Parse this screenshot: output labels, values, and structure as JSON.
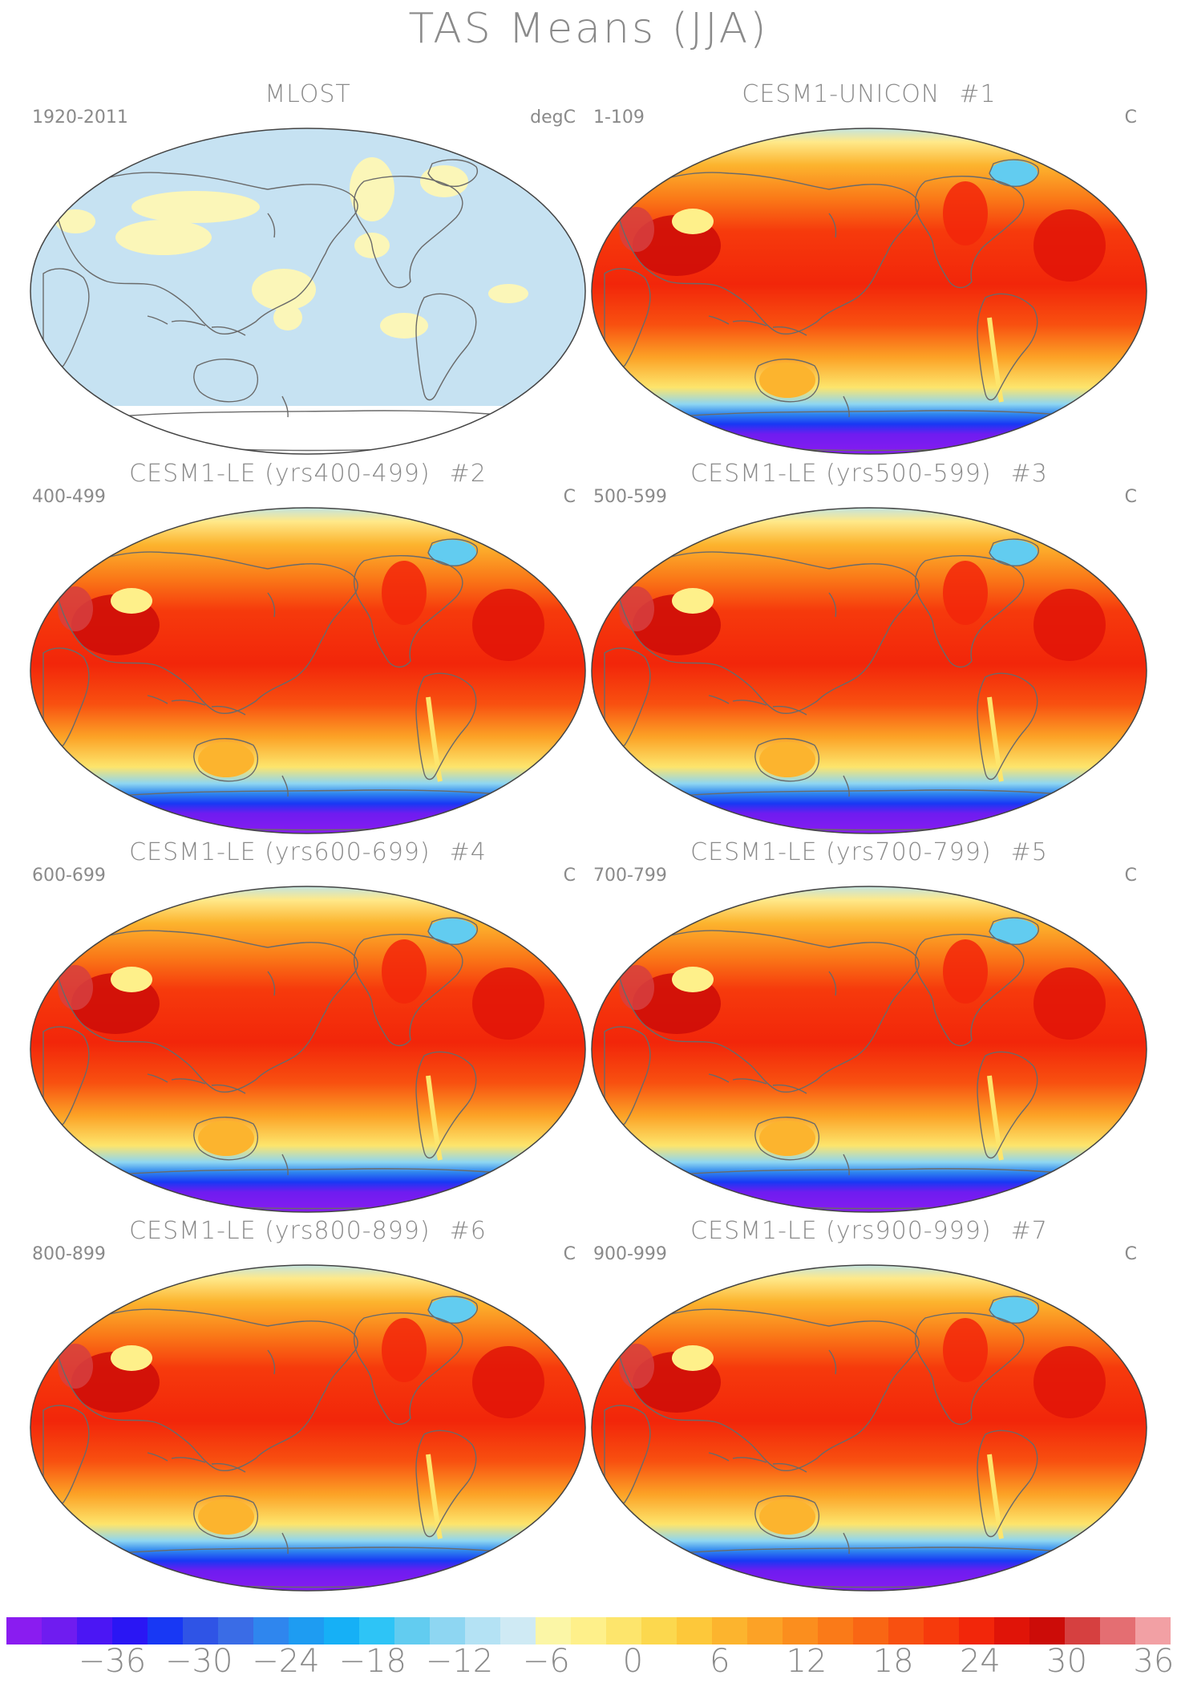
{
  "figure": {
    "title": "TAS Means (JJA)"
  },
  "panels": [
    {
      "title": "MLOST",
      "number": "",
      "period": "1920-2011",
      "units": "degC",
      "kind": "obs"
    },
    {
      "title": "CESM1-UNICON",
      "number": "#1",
      "period": "1-109",
      "units": "C",
      "kind": "model"
    },
    {
      "title": "CESM1-LE (yrs400-499)",
      "number": "#2",
      "period": "400-499",
      "units": "C",
      "kind": "model"
    },
    {
      "title": "CESM1-LE (yrs500-599)",
      "number": "#3",
      "period": "500-599",
      "units": "C",
      "kind": "model"
    },
    {
      "title": "CESM1-LE (yrs600-699)",
      "number": "#4",
      "period": "600-699",
      "units": "C",
      "kind": "model"
    },
    {
      "title": "CESM1-LE (yrs700-799)",
      "number": "#5",
      "period": "700-799",
      "units": "C",
      "kind": "model"
    },
    {
      "title": "CESM1-LE (yrs800-899)",
      "number": "#6",
      "period": "800-899",
      "units": "C",
      "kind": "model"
    },
    {
      "title": "CESM1-LE (yrs900-999)",
      "number": "#7",
      "period": "900-999",
      "units": "C",
      "kind": "model"
    }
  ],
  "colorbar": {
    "labels": [
      "−36",
      "−30",
      "−24",
      "−18",
      "−12",
      "−6",
      "0",
      "6",
      "12",
      "18",
      "24",
      "30",
      "36"
    ],
    "colors": [
      "#8a1cf0",
      "#6f1cf0",
      "#4b16f4",
      "#2a16f4",
      "#1838f4",
      "#2f54e6",
      "#3a6ce6",
      "#2f86ee",
      "#1e9cf2",
      "#16b0f6",
      "#2ec4f6",
      "#62ccf0",
      "#8ed6f2",
      "#b4e2f4",
      "#cfeaf4",
      "#fbf6a6",
      "#fef08a",
      "#fde56c",
      "#fcd84e",
      "#fdc83a",
      "#fcb42e",
      "#fca226",
      "#fb8e1e",
      "#fa7a18",
      "#f96614",
      "#f85010",
      "#f63a0c",
      "#f2260a",
      "#e01408",
      "#cc0c08",
      "#d64040",
      "#e46e72",
      "#f2a0a4"
    ]
  }
}
